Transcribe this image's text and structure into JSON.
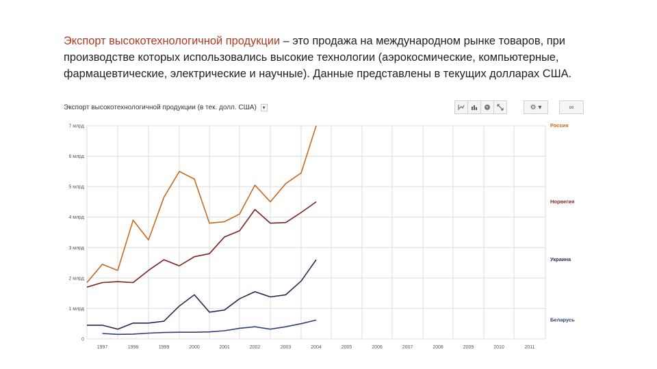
{
  "intro": {
    "term": "Экспорт высокотехнологичной продукции",
    "rest": " – это продажа на международном рынке товаров, при производстве которых использовались высокие технологии (аэрокосмические, компьютерные, фармацевтические, электрические и научные). Данные представлены в текущих долларах США."
  },
  "toolbar": {
    "icons": [
      "line-chart-icon",
      "bar-chart-icon",
      "globe-icon",
      "expand-icon",
      "gear-icon",
      "link-icon"
    ]
  },
  "chart_data": {
    "type": "line",
    "title": "Экспорт высокотехнологичной продукции (в тек. долл. США)",
    "xlabel": "",
    "ylabel": "",
    "x": [
      "1997",
      "1998",
      "1999",
      "2000",
      "2001",
      "2002",
      "2003",
      "2004",
      "2005",
      "2006",
      "2007",
      "2008",
      "2009",
      "2010",
      "2011"
    ],
    "x_tick_labels": [
      "1997",
      "1998",
      "1999",
      "2000",
      "2001",
      "2002",
      "2003",
      "2004",
      "2005",
      "2006",
      "2007",
      "2008",
      "2009",
      "2010",
      "2011"
    ],
    "ylim": [
      0,
      7
    ],
    "y_ticks": [
      {
        "value": 0,
        "label": "0"
      },
      {
        "value": 1,
        "label": "1 млрд"
      },
      {
        "value": 2,
        "label": "2 млрд"
      },
      {
        "value": 3,
        "label": "3 млрд"
      },
      {
        "value": 4,
        "label": "4 млрд"
      },
      {
        "value": 5,
        "label": "5 млрд"
      },
      {
        "value": 6,
        "label": "6 млрд"
      },
      {
        "value": 7,
        "label": "7 млрд"
      }
    ],
    "grid": true,
    "legend": "right",
    "series": [
      {
        "name": "Россия",
        "color": "#c46a1e",
        "points": [
          [
            0,
            1.85
          ],
          [
            0.5,
            2.45
          ],
          [
            1,
            2.25
          ],
          [
            1.5,
            3.9
          ],
          [
            2,
            3.25
          ],
          [
            2.5,
            4.65
          ],
          [
            3,
            5.5
          ],
          [
            3.5,
            5.25
          ],
          [
            4,
            3.8
          ],
          [
            4.5,
            3.85
          ],
          [
            5,
            4.1
          ],
          [
            5.5,
            5.05
          ],
          [
            6,
            4.5
          ],
          [
            6.5,
            5.1
          ],
          [
            7,
            5.45
          ],
          [
            7.5,
            7.0
          ]
        ]
      },
      {
        "name": "Норвегия",
        "color": "#7a1f1f",
        "points": [
          [
            0,
            1.7
          ],
          [
            0.5,
            1.85
          ],
          [
            1,
            1.88
          ],
          [
            1.5,
            1.85
          ],
          [
            2,
            2.25
          ],
          [
            2.5,
            2.6
          ],
          [
            3,
            2.4
          ],
          [
            3.5,
            2.7
          ],
          [
            4,
            2.8
          ],
          [
            4.5,
            3.35
          ],
          [
            5,
            3.55
          ],
          [
            5.5,
            4.25
          ],
          [
            6,
            3.8
          ],
          [
            6.5,
            3.82
          ],
          [
            7,
            4.15
          ],
          [
            7.5,
            4.5
          ]
        ]
      },
      {
        "name": "Украина",
        "color": "#3a1f4a",
        "points": [
          [
            0,
            0.45
          ],
          [
            0.5,
            0.45
          ],
          [
            1,
            0.32
          ],
          [
            1.5,
            0.52
          ],
          [
            2,
            0.52
          ],
          [
            2.5,
            0.58
          ],
          [
            3,
            1.08
          ],
          [
            3.5,
            1.45
          ],
          [
            4,
            0.88
          ],
          [
            4.5,
            0.95
          ],
          [
            5,
            1.32
          ],
          [
            5.5,
            1.55
          ],
          [
            6,
            1.38
          ],
          [
            6.5,
            1.45
          ],
          [
            7,
            1.9
          ],
          [
            7.5,
            2.6
          ]
        ]
      },
      {
        "name": "Беларусь",
        "color": "#2c3e77",
        "points": [
          [
            0.5,
            0.18
          ],
          [
            1,
            0.15
          ],
          [
            1.5,
            0.16
          ],
          [
            2,
            0.19
          ],
          [
            2.5,
            0.21
          ],
          [
            3,
            0.22
          ],
          [
            3.5,
            0.22
          ],
          [
            4,
            0.23
          ],
          [
            4.5,
            0.27
          ],
          [
            5,
            0.35
          ],
          [
            5.5,
            0.4
          ],
          [
            6,
            0.32
          ],
          [
            6.5,
            0.4
          ],
          [
            7,
            0.5
          ],
          [
            7.5,
            0.62
          ]
        ]
      }
    ]
  }
}
